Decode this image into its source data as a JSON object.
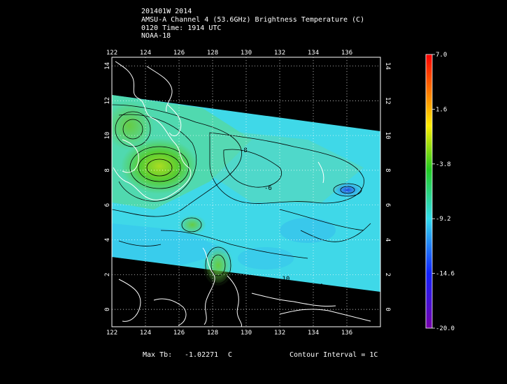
{
  "header": {
    "storm_line": "201401W 2014",
    "product_line": "AMSU-A Channel 4 (53.6GHz) Brightness Temperature (C)",
    "time_line": "0120 Time: 1914 UTC",
    "satellite_line": "NOAA-18"
  },
  "axes": {
    "lon_ticks": [
      "122",
      "124",
      "126",
      "128",
      "130",
      "132",
      "134",
      "136"
    ],
    "lat_ticks": [
      "0",
      "2",
      "4",
      "6",
      "8",
      "10",
      "12",
      "14"
    ]
  },
  "colorbar": {
    "labels": [
      "7.0",
      "1.6",
      "-3.8",
      "-9.2",
      "-14.6",
      "-20.0"
    ],
    "colors": [
      "#ff0000",
      "#ffee00",
      "#22cc22",
      "#33ddee",
      "#1122ff",
      "#7700aa"
    ]
  },
  "footer": {
    "max_tb_label": "Max Tb:",
    "max_tb_value": "-1.02271",
    "max_tb_unit": "C",
    "contour_interval": "Contour Interval = 1C"
  },
  "contour_labels": [
    "-8",
    "-6",
    "-10"
  ]
}
